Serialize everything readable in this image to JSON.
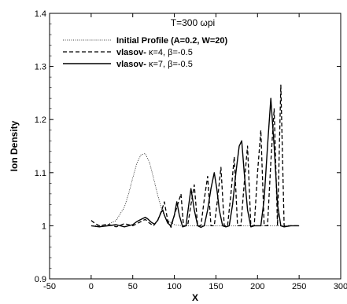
{
  "chart_data": {
    "type": "line",
    "title": "",
    "annotation": "T=300  ωpi",
    "xlabel": "X",
    "ylabel": "Ion Density",
    "xlim": [
      -50,
      300
    ],
    "ylim": [
      0.9,
      1.4
    ],
    "xticks": [
      -50,
      0,
      50,
      100,
      150,
      200,
      250,
      300
    ],
    "yticks": [
      0.9,
      1,
      1.1,
      1.2,
      1.3,
      1.4
    ],
    "xtick_labels": [
      "-50",
      "0",
      "50",
      "100",
      "150",
      "200",
      "250",
      "300"
    ],
    "ytick_labels": [
      "0.9",
      "1",
      "1.1",
      "1.2",
      "1.3",
      "1.4"
    ],
    "grid": false,
    "legend_position": "top-left",
    "series": [
      {
        "name": "Initial Profile (A=0.2, W=20)",
        "legend_bold": "Initial Profile (A=0.2, W=20)",
        "legend_rest": "",
        "style": "dotted",
        "x": [
          0,
          10,
          20,
          30,
          40,
          45,
          50,
          55,
          60,
          65,
          70,
          75,
          80,
          85,
          90,
          100,
          110,
          120,
          130,
          140,
          150,
          160,
          200,
          250
        ],
        "y": [
          1.0,
          1.0,
          1.002,
          1.01,
          1.035,
          1.06,
          1.09,
          1.118,
          1.134,
          1.136,
          1.12,
          1.09,
          1.058,
          1.03,
          1.012,
          1.002,
          1.0,
          1.0,
          1.0,
          1.0,
          1.0,
          1.0,
          1.0,
          1.0
        ]
      },
      {
        "name": "vlasov- κ=4, β=-0.5",
        "legend_bold": "vlasov-",
        "legend_rest": " κ=4, β=-0.5",
        "style": "dashed",
        "x": [
          0,
          5,
          10,
          20,
          30,
          40,
          50,
          60,
          65,
          70,
          75,
          80,
          85,
          88,
          92,
          96,
          100,
          104,
          108,
          111,
          116,
          120,
          124,
          128,
          132,
          136,
          140,
          144,
          148,
          152,
          156,
          160,
          164,
          168,
          172,
          176,
          180,
          184,
          188,
          192,
          196,
          200,
          204,
          208,
          212,
          216,
          220,
          224,
          228,
          232,
          236,
          240,
          245,
          250
        ],
        "y": [
          1.01,
          1.004,
          1.0,
          1.003,
          0.998,
          1.004,
          1.0,
          1.008,
          1.012,
          1.005,
          1.0,
          1.01,
          1.03,
          1.045,
          1.01,
          0.997,
          1.02,
          1.04,
          1.06,
          1.0,
          1.0,
          1.04,
          1.077,
          1.0,
          1.0,
          1.05,
          1.093,
          1.0,
          1.0,
          1.05,
          1.11,
          1.0,
          1.0,
          1.06,
          1.13,
          1.0,
          1.0,
          1.08,
          1.15,
          1.0,
          1.0,
          1.1,
          1.18,
          1.0,
          1.0,
          1.12,
          1.22,
          1.0,
          1.265,
          1.0,
          1.0,
          1.0,
          1.0,
          1.0
        ]
      },
      {
        "name": "vlasov- κ=7, β=-0.5",
        "legend_bold": "vlasov-",
        "legend_rest": " κ=7, β=-0.5",
        "style": "solid",
        "x": [
          0,
          10,
          20,
          30,
          40,
          50,
          55,
          60,
          65,
          68,
          72,
          76,
          80,
          84,
          86,
          88,
          92,
          96,
          100,
          103,
          106,
          110,
          114,
          117,
          120,
          124,
          128,
          132,
          136,
          140,
          144,
          148,
          151,
          154,
          158,
          162,
          166,
          170,
          174,
          178,
          181,
          184,
          188,
          192,
          196,
          200,
          204,
          208,
          212,
          216,
          220,
          224,
          228,
          232,
          240,
          250
        ],
        "y": [
          1.0,
          0.998,
          1.0,
          1.002,
          0.998,
          1.002,
          1.008,
          1.012,
          1.016,
          1.013,
          1.007,
          1.003,
          1.01,
          1.025,
          1.03,
          1.02,
          1.005,
          1.0,
          1.02,
          1.045,
          1.02,
          0.998,
          1.0,
          1.035,
          1.07,
          1.03,
          1.0,
          0.997,
          1.0,
          1.03,
          1.07,
          1.1,
          1.07,
          1.03,
          1.0,
          0.998,
          1.0,
          1.04,
          1.1,
          1.15,
          1.16,
          1.1,
          1.03,
          0.998,
          1.0,
          1.0,
          1.0,
          1.05,
          1.15,
          1.24,
          1.15,
          1.04,
          1.0,
          0.998,
          1.0,
          1.0
        ]
      }
    ]
  }
}
